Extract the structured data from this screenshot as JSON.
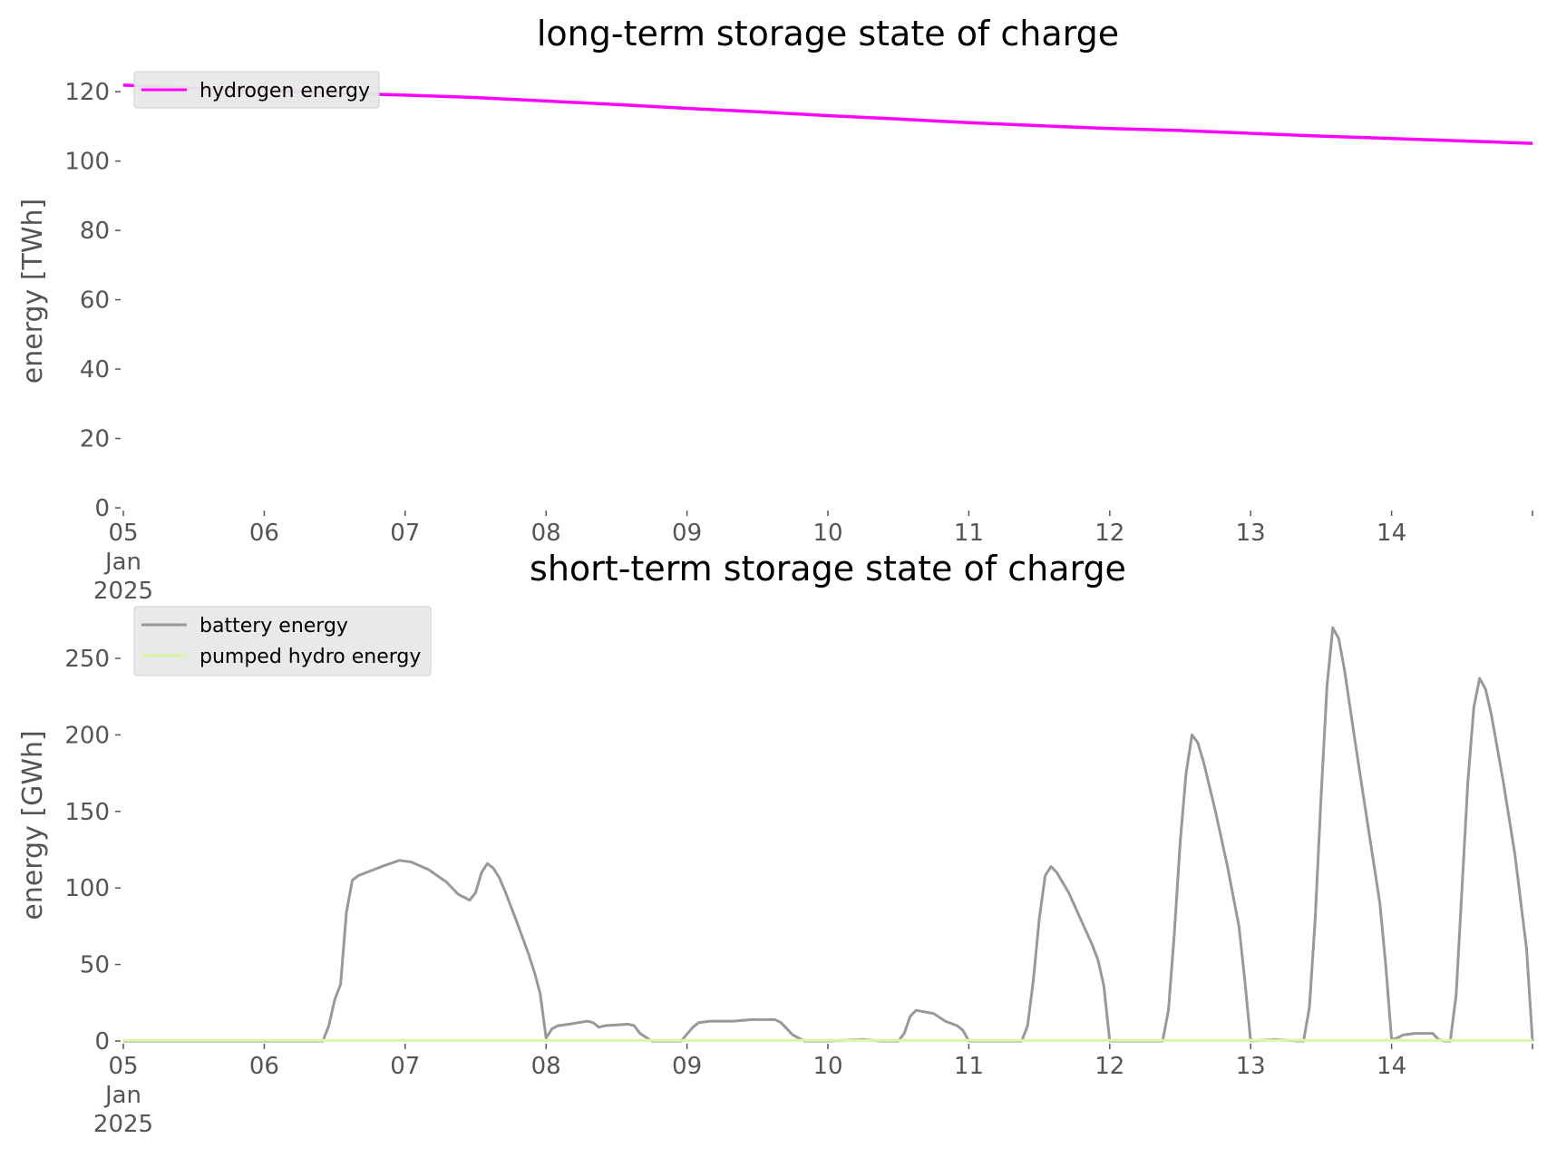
{
  "chart_data": [
    {
      "type": "line",
      "title": "long-term storage state of charge",
      "ylabel": "energy [TWh]",
      "xlabel": "",
      "xlim": [
        "2025-01-05",
        "2025-01-15"
      ],
      "ylim": [
        0,
        125
      ],
      "yticks": [
        0,
        20,
        40,
        60,
        80,
        100,
        120
      ],
      "xticks": [
        {
          "date": "2025-01-05",
          "label": "05",
          "sub1": "Jan",
          "sub2": "2025"
        },
        {
          "date": "2025-01-06",
          "label": "06"
        },
        {
          "date": "2025-01-07",
          "label": "07"
        },
        {
          "date": "2025-01-08",
          "label": "08"
        },
        {
          "date": "2025-01-09",
          "label": "09"
        },
        {
          "date": "2025-01-10",
          "label": "10"
        },
        {
          "date": "2025-01-11",
          "label": "11"
        },
        {
          "date": "2025-01-12",
          "label": "12"
        },
        {
          "date": "2025-01-13",
          "label": "13"
        },
        {
          "date": "2025-01-14",
          "label": "14"
        },
        {
          "date": "2025-01-15",
          "label": ""
        }
      ],
      "legend": "top-left",
      "grid": false,
      "series": [
        {
          "name": "hydrogen energy",
          "color": "#ff00ff",
          "points": [
            [
              "2025-01-05T00:00",
              121.9
            ],
            [
              "2025-01-05T12:00",
              121.0
            ],
            [
              "2025-01-06T00:00",
              120.3
            ],
            [
              "2025-01-06T12:00",
              119.6
            ],
            [
              "2025-01-07T00:00",
              119.0
            ],
            [
              "2025-01-07T12:00",
              118.3
            ],
            [
              "2025-01-08T00:00",
              117.3
            ],
            [
              "2025-01-08T12:00",
              116.3
            ],
            [
              "2025-01-09T00:00",
              115.2
            ],
            [
              "2025-01-09T12:00",
              114.2
            ],
            [
              "2025-01-10T00:00",
              113.1
            ],
            [
              "2025-01-10T12:00",
              112.1
            ],
            [
              "2025-01-11T00:00",
              111.1
            ],
            [
              "2025-01-11T12:00",
              110.2
            ],
            [
              "2025-01-12T00:00",
              109.4
            ],
            [
              "2025-01-12T12:00",
              108.8
            ],
            [
              "2025-01-13T00:00",
              108.0
            ],
            [
              "2025-01-13T12:00",
              107.2
            ],
            [
              "2025-01-14T00:00",
              106.5
            ],
            [
              "2025-01-14T12:00",
              105.8
            ],
            [
              "2025-01-15T00:00",
              105.1
            ]
          ]
        }
      ]
    },
    {
      "type": "line",
      "title": "short-term storage state of charge",
      "ylabel": "energy [GWh]",
      "xlabel": "",
      "xlim": [
        "2025-01-05",
        "2025-01-15"
      ],
      "ylim": [
        0,
        282
      ],
      "yticks": [
        0,
        50,
        100,
        150,
        200,
        250
      ],
      "xticks": [
        {
          "date": "2025-01-05",
          "label": "05",
          "sub1": "Jan",
          "sub2": "2025"
        },
        {
          "date": "2025-01-06",
          "label": "06"
        },
        {
          "date": "2025-01-07",
          "label": "07"
        },
        {
          "date": "2025-01-08",
          "label": "08"
        },
        {
          "date": "2025-01-09",
          "label": "09"
        },
        {
          "date": "2025-01-10",
          "label": "10"
        },
        {
          "date": "2025-01-11",
          "label": "11"
        },
        {
          "date": "2025-01-12",
          "label": "12"
        },
        {
          "date": "2025-01-13",
          "label": "13"
        },
        {
          "date": "2025-01-14",
          "label": "14"
        },
        {
          "date": "2025-01-15",
          "label": ""
        }
      ],
      "legend": "top-left",
      "grid": false,
      "series": [
        {
          "name": "battery energy",
          "color": "#999999",
          "points": [
            [
              "2025-01-05T00:00",
              0
            ],
            [
              "2025-01-06T10:00",
              0
            ],
            [
              "2025-01-06T11:00",
              10
            ],
            [
              "2025-01-06T12:00",
              27
            ],
            [
              "2025-01-06T13:00",
              37
            ],
            [
              "2025-01-06T14:00",
              84
            ],
            [
              "2025-01-06T15:00",
              105
            ],
            [
              "2025-01-06T16:00",
              108
            ],
            [
              "2025-01-06T20:00",
              114
            ],
            [
              "2025-01-06T23:00",
              118
            ],
            [
              "2025-01-07T01:00",
              117
            ],
            [
              "2025-01-07T04:00",
              112
            ],
            [
              "2025-01-07T07:00",
              104
            ],
            [
              "2025-01-07T09:00",
              96
            ],
            [
              "2025-01-07T11:00",
              92
            ],
            [
              "2025-01-07T12:00",
              97
            ],
            [
              "2025-01-07T13:00",
              110
            ],
            [
              "2025-01-07T14:00",
              116
            ],
            [
              "2025-01-07T15:00",
              113
            ],
            [
              "2025-01-07T16:00",
              107
            ],
            [
              "2025-01-07T17:00",
              98
            ],
            [
              "2025-01-07T19:00",
              78
            ],
            [
              "2025-01-07T21:00",
              57
            ],
            [
              "2025-01-07T22:00",
              45
            ],
            [
              "2025-01-07T23:00",
              31
            ],
            [
              "2025-01-08T00:00",
              2
            ],
            [
              "2025-01-08T01:00",
              8
            ],
            [
              "2025-01-08T02:00",
              10
            ],
            [
              "2025-01-08T04:00",
              11
            ],
            [
              "2025-01-08T07:00",
              13
            ],
            [
              "2025-01-08T08:00",
              12
            ],
            [
              "2025-01-08T09:00",
              9
            ],
            [
              "2025-01-08T10:00",
              10
            ],
            [
              "2025-01-08T14:00",
              11
            ],
            [
              "2025-01-08T15:00",
              10
            ],
            [
              "2025-01-08T16:00",
              5
            ],
            [
              "2025-01-08T18:00",
              0
            ],
            [
              "2025-01-08T23:00",
              0
            ],
            [
              "2025-01-09T01:00",
              9
            ],
            [
              "2025-01-09T02:00",
              12
            ],
            [
              "2025-01-09T04:00",
              13
            ],
            [
              "2025-01-09T08:00",
              13
            ],
            [
              "2025-01-09T11:00",
              14
            ],
            [
              "2025-01-09T15:00",
              14
            ],
            [
              "2025-01-09T16:00",
              12
            ],
            [
              "2025-01-09T18:00",
              4
            ],
            [
              "2025-01-09T20:00",
              0
            ],
            [
              "2025-01-10T00:00",
              0
            ],
            [
              "2025-01-10T06:00",
              1
            ],
            [
              "2025-01-10T09:00",
              0
            ],
            [
              "2025-01-10T12:00",
              0
            ],
            [
              "2025-01-10T13:00",
              5
            ],
            [
              "2025-01-10T14:00",
              16
            ],
            [
              "2025-01-10T15:00",
              20
            ],
            [
              "2025-01-10T18:00",
              18
            ],
            [
              "2025-01-10T20:00",
              13
            ],
            [
              "2025-01-10T22:00",
              10
            ],
            [
              "2025-01-10T23:00",
              7
            ],
            [
              "2025-01-11T00:00",
              0
            ],
            [
              "2025-01-11T09:00",
              0
            ],
            [
              "2025-01-11T10:00",
              10
            ],
            [
              "2025-01-11T11:00",
              40
            ],
            [
              "2025-01-11T12:00",
              80
            ],
            [
              "2025-01-11T13:00",
              108
            ],
            [
              "2025-01-11T14:00",
              114
            ],
            [
              "2025-01-11T15:00",
              110
            ],
            [
              "2025-01-11T17:00",
              97
            ],
            [
              "2025-01-11T19:00",
              80
            ],
            [
              "2025-01-11T21:00",
              63
            ],
            [
              "2025-01-11T22:00",
              53
            ],
            [
              "2025-01-11T23:00",
              36
            ],
            [
              "2025-01-12T00:00",
              0
            ],
            [
              "2025-01-12T09:00",
              0
            ],
            [
              "2025-01-12T10:00",
              20
            ],
            [
              "2025-01-12T11:00",
              70
            ],
            [
              "2025-01-12T12:00",
              130
            ],
            [
              "2025-01-12T13:00",
              175
            ],
            [
              "2025-01-12T14:00",
              200
            ],
            [
              "2025-01-12T15:00",
              195
            ],
            [
              "2025-01-12T16:00",
              182
            ],
            [
              "2025-01-12T18:00",
              150
            ],
            [
              "2025-01-12T20:00",
              115
            ],
            [
              "2025-01-12T22:00",
              75
            ],
            [
              "2025-01-12T23:00",
              40
            ],
            [
              "2025-01-13T00:00",
              0
            ],
            [
              "2025-01-13T04:00",
              1
            ],
            [
              "2025-01-13T08:00",
              0
            ],
            [
              "2025-01-13T09:00",
              0
            ],
            [
              "2025-01-13T10:00",
              22
            ],
            [
              "2025-01-13T11:00",
              80
            ],
            [
              "2025-01-13T12:00",
              160
            ],
            [
              "2025-01-13T13:00",
              232
            ],
            [
              "2025-01-13T14:00",
              270
            ],
            [
              "2025-01-13T15:00",
              263
            ],
            [
              "2025-01-13T16:00",
              242
            ],
            [
              "2025-01-13T18:00",
              190
            ],
            [
              "2025-01-13T20:00",
              140
            ],
            [
              "2025-01-13T22:00",
              90
            ],
            [
              "2025-01-13T23:00",
              50
            ],
            [
              "2025-01-14T00:00",
              1
            ],
            [
              "2025-01-14T01:00",
              2
            ],
            [
              "2025-01-14T02:00",
              4
            ],
            [
              "2025-01-14T04:00",
              5
            ],
            [
              "2025-01-14T07:00",
              5
            ],
            [
              "2025-01-14T08:00",
              1
            ],
            [
              "2025-01-14T09:00",
              0
            ],
            [
              "2025-01-14T10:00",
              0
            ],
            [
              "2025-01-14T11:00",
              30
            ],
            [
              "2025-01-14T12:00",
              100
            ],
            [
              "2025-01-14T13:00",
              170
            ],
            [
              "2025-01-14T14:00",
              218
            ],
            [
              "2025-01-14T15:00",
              237
            ],
            [
              "2025-01-14T16:00",
              230
            ],
            [
              "2025-01-14T17:00",
              213
            ],
            [
              "2025-01-14T19:00",
              170
            ],
            [
              "2025-01-14T21:00",
              122
            ],
            [
              "2025-01-14T23:00",
              60
            ],
            [
              "2025-01-15T00:00",
              0
            ]
          ]
        },
        {
          "name": "pumped hydro energy",
          "color": "#dcf5a0",
          "points": [
            [
              "2025-01-05T00:00",
              0.5
            ],
            [
              "2025-01-15T00:00",
              0.5
            ]
          ]
        }
      ]
    }
  ]
}
